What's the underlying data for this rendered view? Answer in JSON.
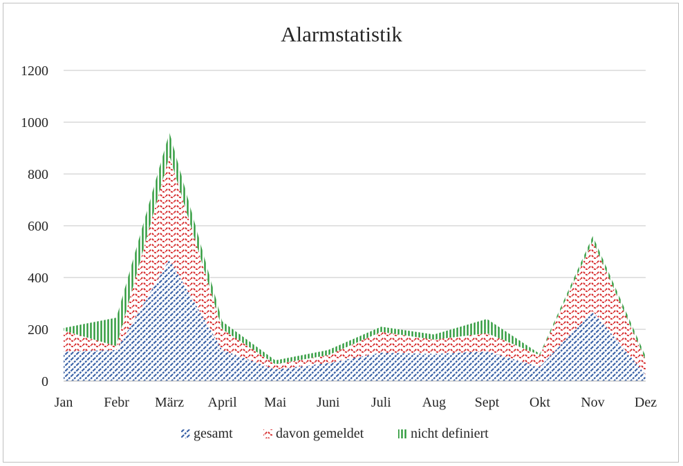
{
  "chart_data": {
    "type": "area",
    "stacked": true,
    "title": "Alarmstatistik",
    "xlabel": "",
    "ylabel": "",
    "categories": [
      "Jan",
      "Febr",
      "März",
      "April",
      "Mai",
      "Juni",
      "Juli",
      "Aug",
      "Sept",
      "Okt",
      "Nov",
      "Dez"
    ],
    "ylim": [
      0,
      1200
    ],
    "yticks": [
      0,
      200,
      400,
      600,
      800,
      1000,
      1200
    ],
    "grid": true,
    "legend_position": "bottom",
    "series": [
      {
        "name": "gesamt",
        "values": [
          115,
          120,
          470,
          120,
          45,
          70,
          110,
          105,
          115,
          55,
          270,
          25
        ],
        "color": "#3a62a7",
        "pattern": "diagonal-dashed"
      },
      {
        "name": "davon gemeldet",
        "values": [
          80,
          15,
          400,
          80,
          20,
          30,
          80,
          55,
          70,
          45,
          270,
          55
        ],
        "color": "#d62728",
        "pattern": "wave"
      },
      {
        "name": "nicht definiert",
        "values": [
          10,
          110,
          90,
          30,
          15,
          20,
          20,
          20,
          55,
          5,
          20,
          15
        ],
        "color": "#2e9a3b",
        "pattern": "vertical"
      }
    ]
  }
}
